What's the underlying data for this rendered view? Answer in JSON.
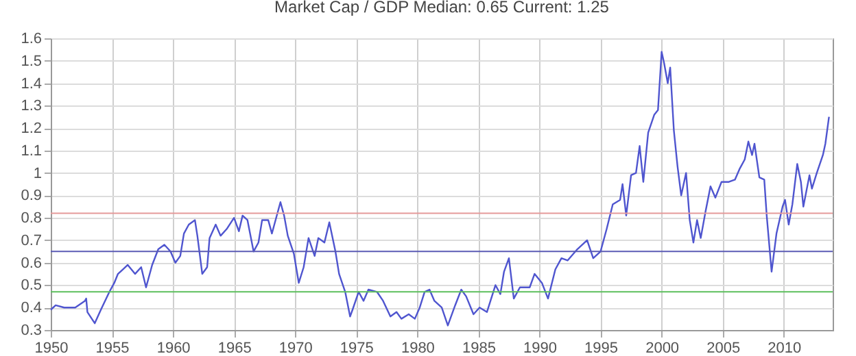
{
  "chart_data": {
    "type": "line",
    "title": "Market Cap / GDP     Median: 0.65  Current: 1.25",
    "x": [
      1950,
      1950.4,
      1951.1,
      1952.0,
      1952.8,
      1952.9,
      1953.0,
      1953.6,
      1954.1,
      1954.8,
      1955.2,
      1955.5,
      1955.9,
      1956.3,
      1956.9,
      1957.4,
      1957.8,
      1958.3,
      1958.8,
      1959.3,
      1959.8,
      1960.2,
      1960.6,
      1960.9,
      1961.3,
      1961.8,
      1962.0,
      1962.4,
      1962.8,
      1963.0,
      1963.5,
      1963.9,
      1964.4,
      1965.0,
      1965.4,
      1965.7,
      1966.1,
      1966.6,
      1967.0,
      1967.3,
      1967.8,
      1968.1,
      1968.3,
      1968.8,
      1969.1,
      1969.4,
      1969.9,
      1970.3,
      1970.7,
      1971.1,
      1971.6,
      1971.9,
      1972.4,
      1972.8,
      1973.3,
      1973.6,
      1974.1,
      1974.5,
      1974.7,
      1975.2,
      1975.6,
      1976.0,
      1976.7,
      1977.2,
      1977.8,
      1978.3,
      1978.7,
      1979.3,
      1979.8,
      1980.2,
      1980.6,
      1981.0,
      1981.4,
      1982.0,
      1982.5,
      1983.1,
      1983.6,
      1984.0,
      1984.6,
      1985.1,
      1985.7,
      1986.4,
      1986.8,
      1987.1,
      1987.5,
      1987.9,
      1988.4,
      1989.2,
      1989.6,
      1990.2,
      1990.7,
      1991.3,
      1991.8,
      1992.3,
      1993.1,
      1993.9,
      1994.4,
      1995.0,
      1995.5,
      1996.0,
      1996.6,
      1996.8,
      1997.1,
      1997.5,
      1997.9,
      1998.2,
      1998.5,
      1998.9,
      1999.4,
      1999.7,
      2000.0,
      2000.2,
      2000.5,
      2000.7,
      2001.0,
      2001.3,
      2001.6,
      2002.0,
      2002.3,
      2002.6,
      2002.9,
      2003.2,
      2003.6,
      2004.0,
      2004.4,
      2004.9,
      2005.5,
      2006.0,
      2006.4,
      2006.8,
      2007.1,
      2007.4,
      2007.6,
      2008.0,
      2008.4,
      2008.6,
      2009.0,
      2009.4,
      2009.9,
      2010.1,
      2010.4,
      2010.7,
      2011.1,
      2011.4,
      2011.6,
      2012.1,
      2012.3,
      2012.7,
      2013.2,
      2013.4,
      2013.7
    ],
    "series": [
      {
        "color": "#4f55cf",
        "values": [
          0.39,
          0.41,
          0.4,
          0.4,
          0.43,
          0.44,
          0.38,
          0.33,
          0.39,
          0.47,
          0.51,
          0.55,
          0.57,
          0.59,
          0.55,
          0.58,
          0.49,
          0.59,
          0.66,
          0.68,
          0.65,
          0.6,
          0.63,
          0.73,
          0.77,
          0.79,
          0.72,
          0.55,
          0.58,
          0.71,
          0.77,
          0.72,
          0.75,
          0.8,
          0.74,
          0.81,
          0.79,
          0.65,
          0.69,
          0.79,
          0.79,
          0.73,
          0.77,
          0.87,
          0.81,
          0.72,
          0.64,
          0.51,
          0.58,
          0.71,
          0.63,
          0.71,
          0.69,
          0.78,
          0.65,
          0.55,
          0.47,
          0.36,
          0.39,
          0.47,
          0.43,
          0.48,
          0.47,
          0.43,
          0.36,
          0.38,
          0.35,
          0.37,
          0.35,
          0.4,
          0.47,
          0.48,
          0.43,
          0.4,
          0.32,
          0.41,
          0.48,
          0.45,
          0.37,
          0.4,
          0.38,
          0.5,
          0.46,
          0.56,
          0.62,
          0.44,
          0.49,
          0.49,
          0.55,
          0.51,
          0.44,
          0.57,
          0.62,
          0.61,
          0.66,
          0.7,
          0.62,
          0.65,
          0.75,
          0.86,
          0.88,
          0.95,
          0.81,
          0.99,
          1.0,
          1.12,
          0.96,
          1.18,
          1.26,
          1.28,
          1.54,
          1.49,
          1.4,
          1.47,
          1.19,
          1.03,
          0.9,
          1.0,
          0.79,
          0.69,
          0.79,
          0.71,
          0.83,
          0.94,
          0.89,
          0.96,
          0.96,
          0.97,
          1.02,
          1.06,
          1.14,
          1.08,
          1.13,
          0.98,
          0.97,
          0.81,
          0.56,
          0.73,
          0.85,
          0.88,
          0.77,
          0.86,
          1.04,
          0.96,
          0.85,
          0.99,
          0.93,
          1.0,
          1.08,
          1.13,
          1.25
        ]
      }
    ],
    "xlim": [
      1950,
      2014
    ],
    "xticks": [
      1950,
      1955,
      1960,
      1965,
      1970,
      1975,
      1980,
      1985,
      1990,
      1995,
      2000,
      2005,
      2010
    ],
    "ylim": [
      0.3,
      1.6
    ],
    "yticks": [
      0.3,
      0.4,
      0.5,
      0.6,
      0.7,
      0.8,
      0.9,
      1,
      1.1,
      1.2,
      1.3,
      1.4,
      1.5,
      1.6
    ],
    "ref_lines": [
      {
        "axis": "y",
        "value": 0.82,
        "color": "#e59a9a"
      },
      {
        "axis": "y",
        "value": 0.65,
        "color": "#5a5ab4"
      },
      {
        "axis": "y",
        "value": 0.47,
        "color": "#5cbf5c"
      }
    ],
    "grid": true,
    "marker": "none",
    "line_style": "solid"
  }
}
